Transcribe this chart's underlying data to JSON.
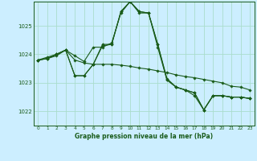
{
  "title": "Graphe pression niveau de la mer (hPa)",
  "background_color": "#cceeff",
  "line_color": "#1a5c1a",
  "grid_color": "#aaddcc",
  "ylim": [
    1021.5,
    1025.85
  ],
  "yticks": [
    1022,
    1023,
    1024,
    1025
  ],
  "xlim": [
    -0.5,
    23.5
  ],
  "xticks": [
    0,
    1,
    2,
    3,
    4,
    5,
    6,
    7,
    8,
    9,
    10,
    11,
    12,
    13,
    14,
    15,
    16,
    17,
    18,
    19,
    20,
    21,
    22,
    23
  ],
  "series": [
    [
      1023.8,
      1023.85,
      1023.95,
      1024.15,
      1023.8,
      1023.7,
      1023.65,
      1023.65,
      1023.65,
      1023.62,
      1023.58,
      1023.52,
      1023.48,
      1023.42,
      1023.36,
      1023.28,
      1023.22,
      1023.18,
      1023.12,
      1023.06,
      1023.0,
      1022.88,
      1022.85,
      1022.75
    ],
    [
      1023.8,
      1023.85,
      1024.0,
      1024.15,
      1023.25,
      1023.25,
      1023.65,
      1024.3,
      1024.35,
      1025.5,
      1025.85,
      1025.5,
      1025.45,
      1024.35,
      1023.15,
      1022.85,
      1022.75,
      1022.65,
      1022.05,
      1022.55,
      1022.55,
      1022.5,
      1022.5,
      1022.45
    ],
    [
      1023.8,
      1023.85,
      1024.0,
      1024.15,
      1023.95,
      1023.75,
      1024.25,
      1024.25,
      1024.4,
      1025.45,
      1025.85,
      1025.45,
      1025.45,
      1024.25,
      1023.1,
      1022.85,
      1022.75,
      1022.65,
      1022.05,
      1022.55,
      1022.55,
      1022.5,
      1022.5,
      1022.45
    ],
    [
      1023.8,
      1023.9,
      1024.0,
      1024.15,
      1023.25,
      1023.25,
      1023.65,
      1024.35,
      1024.35,
      1025.5,
      1025.85,
      1025.5,
      1025.45,
      1024.35,
      1023.1,
      1022.85,
      1022.75,
      1022.55,
      1022.05,
      1022.55,
      1022.55,
      1022.5,
      1022.5,
      1022.45
    ]
  ]
}
